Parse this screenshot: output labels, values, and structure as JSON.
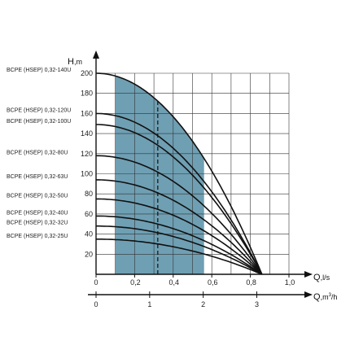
{
  "colors": {
    "band": "#6f9fb3",
    "grid": "#333333",
    "curve": "#111111",
    "axis": "#111111"
  },
  "chart_data": {
    "type": "line",
    "y_axis": {
      "label_main": "H",
      "label_unit": ",m",
      "range": [
        0,
        200
      ],
      "ticks": [
        20,
        40,
        60,
        80,
        100,
        120,
        140,
        160,
        180,
        200
      ]
    },
    "x_axis_flow": {
      "label_main": "Q",
      "label_unit": ",l/s",
      "range": [
        0,
        1.0
      ],
      "ticks": [
        0,
        0.2,
        0.4,
        0.6,
        0.8,
        1.0
      ],
      "tick_labels": [
        "0",
        "0,2",
        "0,4",
        "0,6",
        "0,8",
        "1,0"
      ]
    },
    "x_axis_volume": {
      "label_main": "Q",
      "label_unit": ",m",
      "label_sup": "3",
      "label_end": "/h",
      "ticks": [
        0,
        1,
        2,
        3
      ],
      "tick_labels": [
        "0",
        "1",
        "2",
        "3"
      ]
    },
    "working_range_lps": [
      0.1,
      0.56
    ],
    "nominal_flow_lps": 0.32,
    "series": [
      {
        "name": "BCPE (HSEP) 0,32-140U",
        "shutoff_head": 200,
        "max_flow": 0.86
      },
      {
        "name": "BCPE (HSEP) 0,32-120U",
        "shutoff_head": 160,
        "max_flow": 0.86
      },
      {
        "name": "BCPE (HSEP) 0,32-100U",
        "shutoff_head": 149,
        "max_flow": 0.86
      },
      {
        "name": "BCPE (HSEP) 0,32-80U",
        "shutoff_head": 118,
        "max_flow": 0.86
      },
      {
        "name": "BCPE (HSEP) 0,32-63U",
        "shutoff_head": 94,
        "max_flow": 0.86
      },
      {
        "name": "BCPE (HSEP) 0,32-50U",
        "shutoff_head": 75,
        "max_flow": 0.86
      },
      {
        "name": "BCPE (HSEP) 0,32-40U",
        "shutoff_head": 58,
        "max_flow": 0.86
      },
      {
        "name": "BCPE (HSEP) 0,32-32U",
        "shutoff_head": 48,
        "max_flow": 0.86
      },
      {
        "name": "BCPE (HSEP) 0,32-25U",
        "shutoff_head": 35,
        "max_flow": 0.86
      }
    ]
  }
}
